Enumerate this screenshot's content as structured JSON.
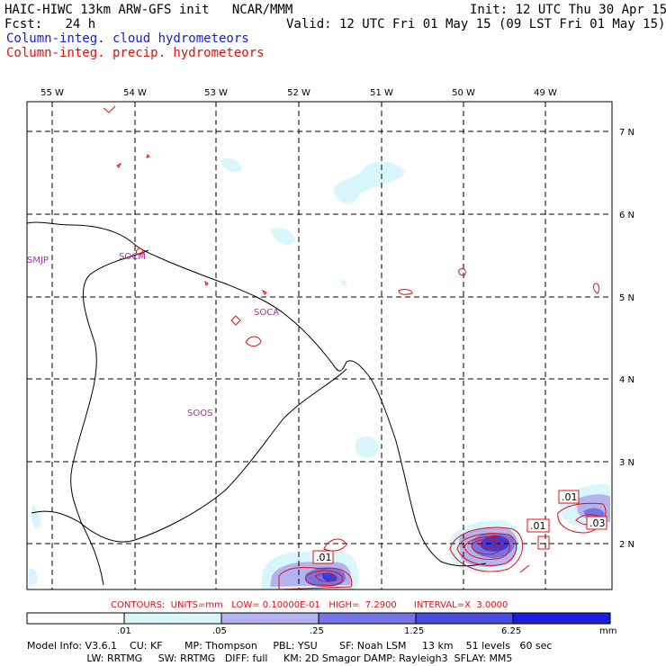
{
  "header": {
    "model_line": "HAIC-HIWC 13km ARW-GFS init   NCAR/MMM",
    "fcst_label": "Fcst:",
    "fcst_value": "24 h",
    "init": "Init: 12 UTC Thu 30 Apr 15",
    "valid": "Valid: 12 UTC Fri 01 May 15 (09 LST Fri 01 May 15)",
    "field1": "Column-integ. cloud hydrometeors",
    "field2": "Column-integ. precip. hydrometeors"
  },
  "map": {
    "lon_labels": [
      "55 W",
      "54 W",
      "53 W",
      "52 W",
      "51 W",
      "50 W",
      "49 W"
    ],
    "lat_labels": [
      "7 N",
      "6 N",
      "5 N",
      "4 N",
      "3 N",
      "2 N"
    ],
    "stations": [
      "SMJP",
      "SOCM",
      "SOCA",
      "SOOS"
    ],
    "contour_labels": [
      ".01",
      ".01",
      ".01",
      ".03"
    ]
  },
  "contours_info": "CONTOURS:  UNITS=mm   LOW= 0.10000E-01   HIGH=  7.2900      INTERVAL=X  3.0000",
  "colorbar": {
    "ticks": [
      ".01",
      ".05",
      ".25",
      "1.25",
      "6.25"
    ],
    "units": "mm",
    "colors": [
      "#ffffff",
      "#d8f6fb",
      "#b3b3f0",
      "#7474e6",
      "#4a4ae0",
      "#1e1ee0"
    ]
  },
  "footer": {
    "line1": "Model Info: V3.6.1    CU: KF       MP: Thompson     PBL: YSU       SF: Noah LSM     13 km    51 levels   60 sec",
    "line2": "                   LW: RRTMG     SW: RRTMG   DIFF: full     KM: 2D Smagor DAMP: Rayleigh3  SFLAY: MM5"
  }
}
